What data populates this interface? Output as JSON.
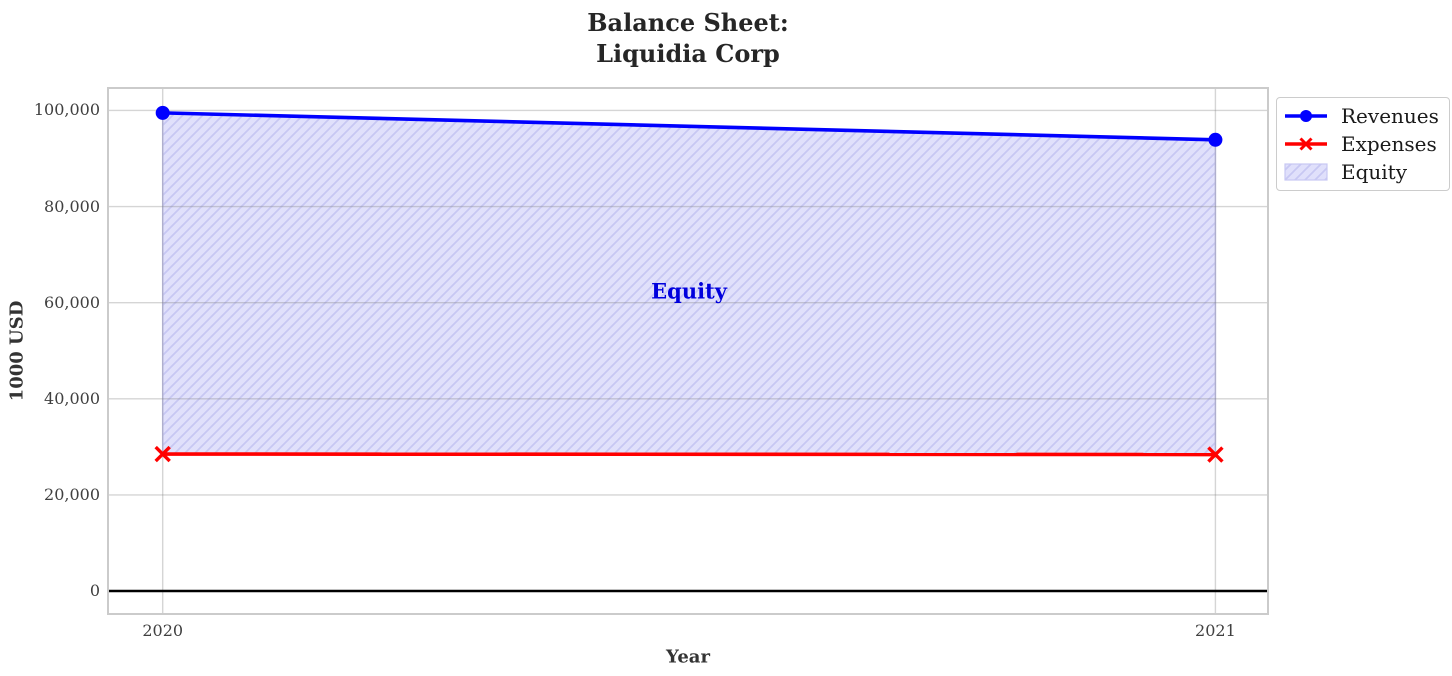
{
  "title": {
    "line1": "Balance Sheet:",
    "line2": "Liquidia Corp"
  },
  "chart_data": {
    "type": "area",
    "x": [
      2020,
      2021
    ],
    "x_tick_labels": [
      "2020",
      "2021"
    ],
    "xlabel": "Year",
    "ylabel": "1000 USD",
    "xlim": [
      2019.949,
      2021.049
    ],
    "ylim": [
      -4580,
      104470
    ],
    "y_ticks": [
      0,
      20000,
      40000,
      60000,
      80000,
      100000
    ],
    "y_tick_labels": [
      "0",
      "20,000",
      "40,000",
      "60,000",
      "80,000",
      "100,000"
    ],
    "grid": true,
    "zero_line": true,
    "series": [
      {
        "name": "Revenues",
        "values": [
          99500,
          93900
        ],
        "color": "#0000ff",
        "marker": "circle"
      },
      {
        "name": "Expenses",
        "values": [
          28500,
          28400
        ],
        "color": "#ff0000",
        "marker": "x"
      }
    ],
    "area": {
      "name": "Equity",
      "upper_series": "Revenues",
      "lower_series": "Expenses",
      "fill_color": "#e0e0fb",
      "hatch": "///",
      "hatch_color": "#c7c7f3"
    },
    "annotation": {
      "text": "Equity",
      "x": 2020.5,
      "y": 62500,
      "color": "#0000dd"
    },
    "legend": {
      "position": "upper-right-outside",
      "entries": [
        {
          "label": "Revenues",
          "swatch": "line-circle",
          "color": "#0000ff"
        },
        {
          "label": "Expenses",
          "swatch": "line-x",
          "color": "#ff0000"
        },
        {
          "label": "Equity",
          "swatch": "hatch-patch",
          "color": "#e0e0fb"
        }
      ]
    },
    "style": {
      "grid_color": "#d2d2d2",
      "spine_color": "#cbcbcb",
      "zero_line_color": "#000000",
      "title_color": "#262626",
      "tick_color": "#404040"
    }
  }
}
